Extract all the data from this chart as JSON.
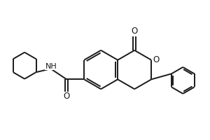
{
  "bg_color": "#ffffff",
  "line_color": "#1a1a1a",
  "lw": 1.4,
  "fig_w": 3.0,
  "fig_h": 2.0,
  "dpi": 100,
  "xlim": [
    0,
    10
  ],
  "ylim": [
    0,
    6.67
  ]
}
